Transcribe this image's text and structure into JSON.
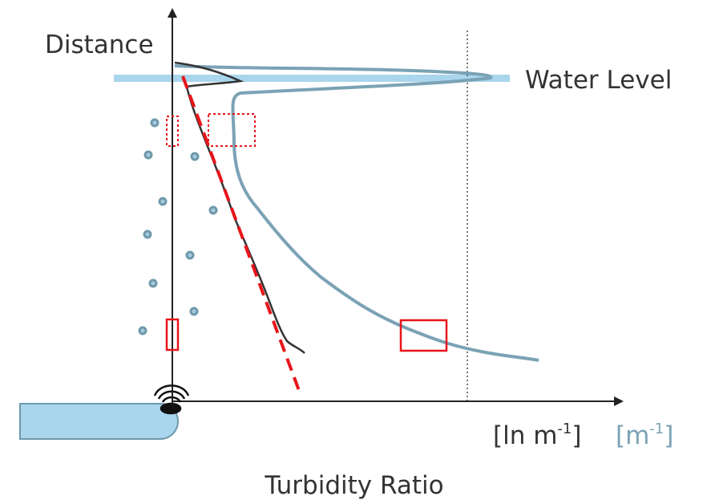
{
  "axis_labels": {
    "y": "Distance",
    "x": "Turbidity Ratio"
  },
  "annotations": {
    "water_level": "Water Level"
  },
  "units": {
    "log": {
      "base": "[ln m",
      "exponent": "-1",
      "close": "]"
    },
    "linear": {
      "base": "[m",
      "exponent": "-1",
      "close": "]"
    }
  }
}
